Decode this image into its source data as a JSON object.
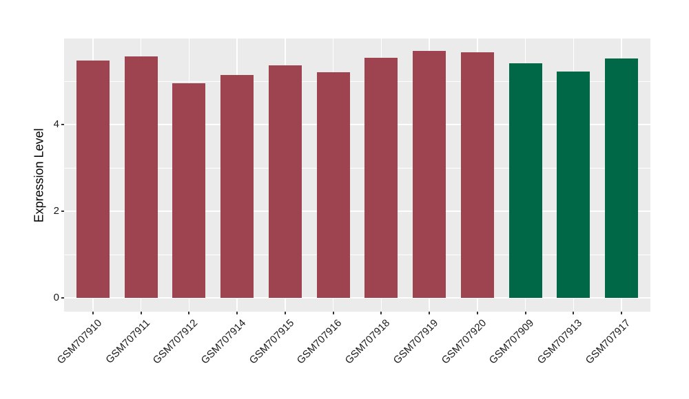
{
  "chart_data": {
    "type": "bar",
    "title": "",
    "xlabel": "",
    "ylabel": "Expression Level",
    "categories": [
      "GSM707910",
      "GSM707911",
      "GSM707912",
      "GSM707914",
      "GSM707915",
      "GSM707916",
      "GSM707918",
      "GSM707919",
      "GSM707920",
      "GSM707909",
      "GSM707913",
      "GSM707917"
    ],
    "series": [
      {
        "name": "Expression Level",
        "values": [
          5.48,
          5.58,
          4.96,
          5.15,
          5.37,
          5.21,
          5.55,
          5.7,
          5.68,
          5.42,
          5.23,
          5.53
        ]
      }
    ],
    "bar_groups": [
      "A",
      "A",
      "A",
      "A",
      "A",
      "A",
      "A",
      "A",
      "A",
      "B",
      "B",
      "B"
    ],
    "group_colors": {
      "A": "#9E4451",
      "B": "#006847"
    },
    "y_ticks": [
      0,
      2,
      4
    ],
    "y_tick_labels": [
      "0",
      "2",
      "4"
    ],
    "y_minor_ticks": [
      1,
      3,
      5
    ],
    "ylim": [
      -0.31,
      5.99
    ],
    "legend_position": "none",
    "grid": true,
    "panel_background": "#EBEBEB",
    "grid_color": "#FFFFFF",
    "axis_text_color": "#1a1a1a"
  }
}
